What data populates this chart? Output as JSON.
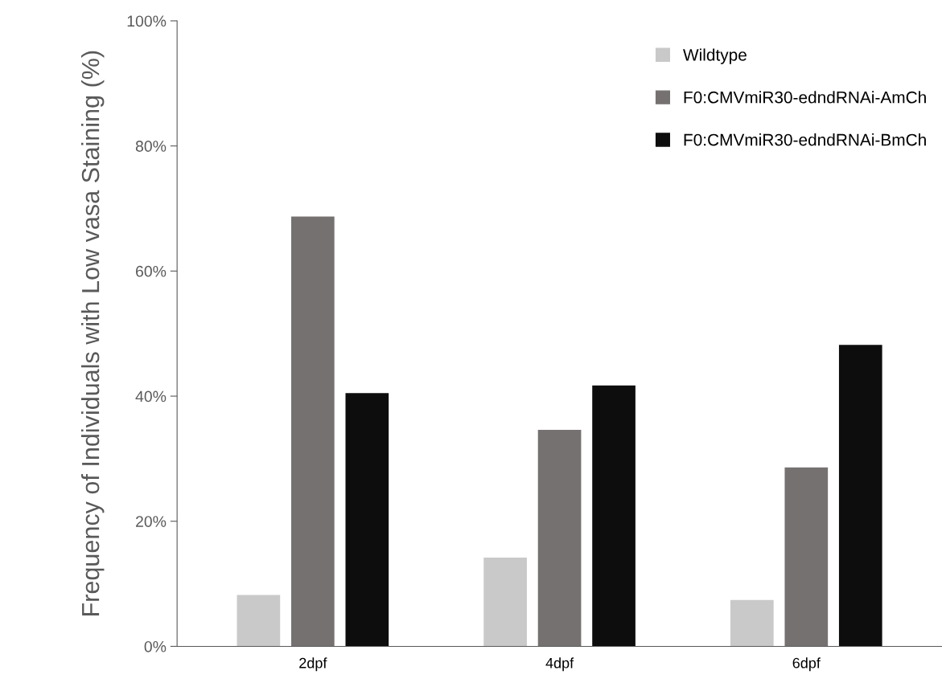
{
  "chart_data": {
    "type": "bar",
    "ylabel": "Frequency of Individuals with Low vasa Staining (%)",
    "categories": [
      "2dpf",
      "4dpf",
      "6dpf"
    ],
    "series": [
      {
        "name": "Wildtype",
        "color": "#c9c9c9",
        "values": [
          8.2,
          14.2,
          7.4
        ]
      },
      {
        "name": "F0:CMVmiR30-edndRNAi-AmCh",
        "color": "#767171",
        "values": [
          68.7,
          34.6,
          28.6
        ]
      },
      {
        "name": "F0:CMVmiR30-edndRNAi-BmCh",
        "color": "#0d0d0d",
        "values": [
          40.5,
          41.7,
          48.2
        ]
      }
    ],
    "ylim": [
      0,
      100
    ],
    "yticks": [
      {
        "value": 0,
        "label": "0%"
      },
      {
        "value": 20,
        "label": "20%"
      },
      {
        "value": 40,
        "label": "40%"
      },
      {
        "value": 60,
        "label": "60%"
      },
      {
        "value": 80,
        "label": "80%"
      },
      {
        "value": 100,
        "label": "100%"
      }
    ],
    "grid": false,
    "legend": "top right"
  }
}
